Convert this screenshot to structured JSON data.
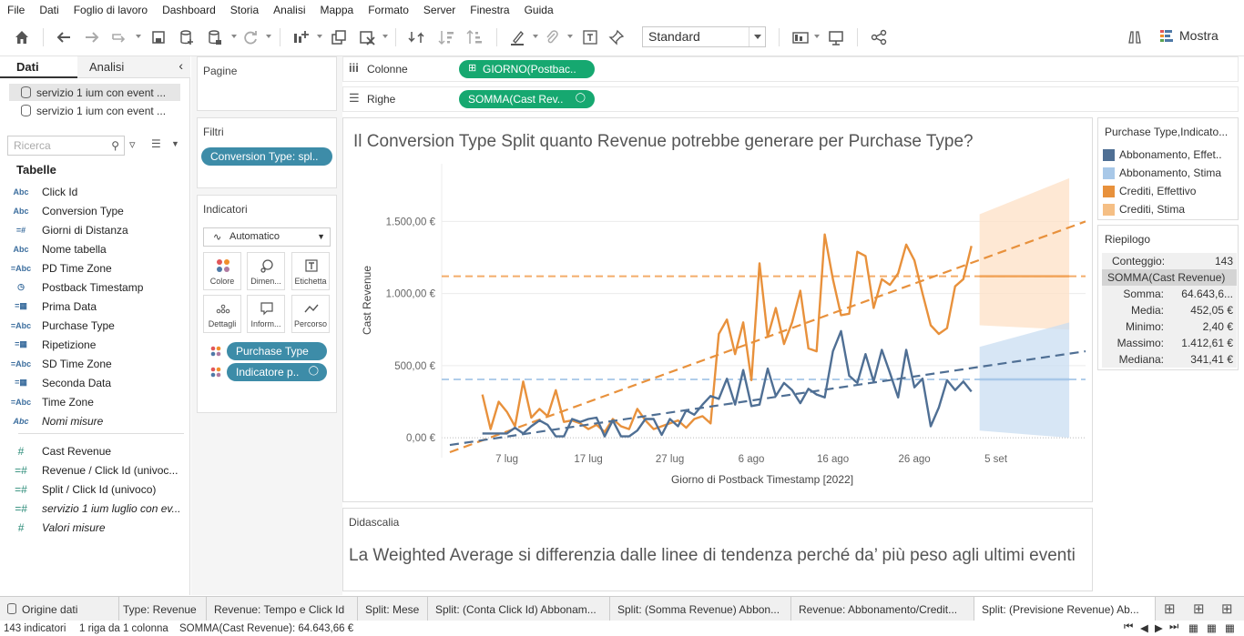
{
  "menu": [
    "File",
    "Dati",
    "Foglio di lavoro",
    "Dashboard",
    "Storia",
    "Analisi",
    "Mappa",
    "Formato",
    "Server",
    "Finestra",
    "Guida"
  ],
  "toolbar": {
    "fit_select": "Standard",
    "show_me_label": "Mostra"
  },
  "left_panel": {
    "tab_data": "Dati",
    "tab_analytics": "Analisi",
    "datasources": [
      "servizio 1 ium con event ...",
      "servizio 1 ium con event ..."
    ],
    "search_placeholder": "Ricerca",
    "tables_heading": "Tabelle",
    "fields": [
      {
        "icon": "Abc",
        "name": "Click Id"
      },
      {
        "icon": "Abc",
        "name": "Conversion Type"
      },
      {
        "icon": "=#",
        "name": "Giorni di Distanza"
      },
      {
        "icon": "Abc",
        "name": "Nome tabella"
      },
      {
        "icon": "=Abc",
        "name": "PD Time Zone"
      },
      {
        "icon": "clock",
        "name": "Postback Timestamp"
      },
      {
        "icon": "=cal",
        "name": "Prima Data"
      },
      {
        "icon": "=Abc",
        "name": "Purchase Type"
      },
      {
        "icon": "=cal",
        "name": "Ripetizione"
      },
      {
        "icon": "=Abc",
        "name": "SD Time Zone"
      },
      {
        "icon": "=cal",
        "name": "Seconda Data"
      },
      {
        "icon": "=Abc",
        "name": "Time Zone"
      },
      {
        "icon": "Abc",
        "name": "Nomi misure"
      }
    ],
    "measures": [
      {
        "icon": "#",
        "name": "Cast Revenue"
      },
      {
        "icon": "=#",
        "name": "Revenue / Click Id (univoc..."
      },
      {
        "icon": "=#",
        "name": "Split / Click Id (univoco)"
      },
      {
        "icon": "=#",
        "name": "servizio 1 ium luglio con ev..."
      },
      {
        "icon": "#",
        "name": "Valori misure"
      }
    ]
  },
  "cards": {
    "pages_title": "Pagine",
    "filters_title": "Filtri",
    "filter_pill": "Conversion Type: spl..",
    "marks_title": "Indicatori",
    "mark_type": "Automatico",
    "mark_buttons": [
      "Colore",
      "Dimen...",
      "Etichetta",
      "Dettagli",
      "Inform...",
      "Percorso"
    ],
    "mark_pills": [
      "Purchase Type",
      "Indicatore p.."
    ]
  },
  "shelves": {
    "columns_label": "Colonne",
    "columns_pill": "GIORNO(Postbac..",
    "rows_label": "Righe",
    "rows_pill": "SOMMA(Cast Rev.."
  },
  "viz": {
    "title": "Il Conversion Type Split quanto Revenue potrebbe generare per Purchase Type?"
  },
  "chart_data": {
    "type": "line",
    "title": "Il Conversion Type Split quanto Revenue potrebbe generare per Purchase Type?",
    "xlabel": "Giorno di Postback Timestamp [2022]",
    "ylabel": "Cast Revenue",
    "x_ticks": [
      "7 lug",
      "17 lug",
      "27 lug",
      "6 ago",
      "16 ago",
      "26 ago",
      "5 set"
    ],
    "x_tick_days": [
      6,
      16,
      26,
      36,
      46,
      56,
      66
    ],
    "y_ticks": [
      "0,00 €",
      "500,00 €",
      "1.000,00 €",
      "1.500,00 €"
    ],
    "y_tick_values": [
      0,
      500,
      1000,
      1500
    ],
    "xlim": [
      -2,
      77
    ],
    "ylim": [
      -100,
      1900
    ],
    "series": [
      {
        "name": "Crediti, Effettivo",
        "color": "#e8913c",
        "x": [
          3,
          4,
          5,
          6,
          7,
          8,
          9,
          10,
          11,
          12,
          13,
          14,
          15,
          16,
          17,
          18,
          19,
          20,
          21,
          22,
          23,
          24,
          25,
          26,
          27,
          28,
          29,
          30,
          31,
          32,
          33,
          34,
          35,
          36,
          37,
          38,
          39,
          40,
          41,
          42,
          43,
          44,
          45,
          46,
          47,
          48,
          49,
          50,
          51,
          52,
          53,
          54,
          55,
          56,
          57,
          58,
          59,
          60,
          61,
          62,
          63
        ],
        "values": [
          300,
          60,
          250,
          180,
          80,
          390,
          140,
          200,
          150,
          330,
          110,
          120,
          100,
          60,
          90,
          40,
          130,
          80,
          60,
          200,
          120,
          60,
          80,
          100,
          120,
          70,
          130,
          150,
          100,
          720,
          820,
          580,
          800,
          400,
          1210,
          700,
          900,
          650,
          800,
          1020,
          620,
          600,
          1410,
          1100,
          850,
          860,
          1290,
          1260,
          900,
          1100,
          1060,
          1140,
          1340,
          1230,
          1000,
          780,
          720,
          760,
          1050,
          1100,
          1330
        ],
        "trend": [
          -100,
          1500
        ]
      },
      {
        "name": "Abbonamento, Effettivo",
        "color": "#4f6f94",
        "x": [
          3,
          4,
          5,
          6,
          7,
          8,
          9,
          10,
          11,
          12,
          13,
          14,
          15,
          16,
          17,
          18,
          19,
          20,
          21,
          22,
          23,
          24,
          25,
          26,
          27,
          28,
          29,
          30,
          31,
          32,
          33,
          34,
          35,
          36,
          37,
          38,
          39,
          40,
          41,
          42,
          43,
          44,
          45,
          46,
          47,
          48,
          49,
          50,
          51,
          52,
          53,
          54,
          55,
          56,
          57,
          58,
          59,
          60,
          61,
          62,
          63
        ],
        "values": [
          30,
          30,
          30,
          30,
          70,
          30,
          80,
          120,
          90,
          10,
          10,
          130,
          110,
          130,
          140,
          10,
          120,
          10,
          10,
          50,
          130,
          130,
          20,
          130,
          80,
          190,
          160,
          230,
          290,
          270,
          410,
          230,
          470,
          220,
          230,
          480,
          290,
          380,
          330,
          240,
          340,
          300,
          280,
          600,
          740,
          430,
          380,
          580,
          390,
          610,
          450,
          280,
          610,
          350,
          410,
          80,
          210,
          400,
          330,
          390,
          320
        ],
        "trend": [
          -50,
          600
        ]
      }
    ],
    "reference_lines": [
      {
        "name": "Crediti, Stima",
        "value": 1120,
        "color": "#f2a45a"
      },
      {
        "name": "Abbonamento, Stima",
        "value": 405,
        "color": "#a8c8e8"
      }
    ],
    "forecast_bands": [
      {
        "name": "Crediti, Stima",
        "x_start": 64,
        "x_end": 75,
        "low_start": 780,
        "low_end": 750,
        "high_start": 1550,
        "high_end": 1800
      },
      {
        "name": "Abbonamento, Stima",
        "x_start": 64,
        "x_end": 75,
        "low_start": 50,
        "low_end": 0,
        "high_start": 630,
        "high_end": 800
      }
    ]
  },
  "caption": {
    "title": "Didascalia",
    "text": "La Weighted Average si differenzia dalle linee di tendenza perché da’ più peso agli ultimi eventi"
  },
  "legend": {
    "title": "Purchase Type,Indicato...",
    "items": [
      {
        "label": "Abbonamento, Effet..",
        "color": "#4f6f94"
      },
      {
        "label": "Abbonamento, Stima",
        "color": "#a8c8e8"
      },
      {
        "label": "Crediti, Effettivo",
        "color": "#e8913c"
      },
      {
        "label": "Crediti, Stima",
        "color": "#f5bf85"
      }
    ]
  },
  "summary": {
    "title": "Riepilogo",
    "count_label": "Conteggio:",
    "count_value": "143",
    "measure_header": "SOMMA(Cast Revenue)",
    "rows": [
      {
        "k": "Somma:",
        "v": "64.643,6..."
      },
      {
        "k": "Media:",
        "v": "452,05 €"
      },
      {
        "k": "Minimo:",
        "v": "2,40 €"
      },
      {
        "k": "Massimo:",
        "v": "1.412,61 €"
      },
      {
        "k": "Mediana:",
        "v": "341,41 €"
      }
    ]
  },
  "tabs": {
    "datasource_tab": "Origine dati",
    "sheets": [
      "Type: Revenue",
      "Revenue: Tempo e Click Id",
      "Split: Mese",
      "Split: (Conta Click Id) Abbonam...",
      "Split: (Somma Revenue) Abbon...",
      "Revenue: Abbonamento/Credit...",
      "Split: (Previsione Revenue) Ab..."
    ],
    "active_index": 6
  },
  "status": {
    "marks": "143 indicatori",
    "rows_cols": "1 riga da 1 colonna",
    "sum": "SOMMA(Cast Revenue): 64.643,66 €"
  }
}
